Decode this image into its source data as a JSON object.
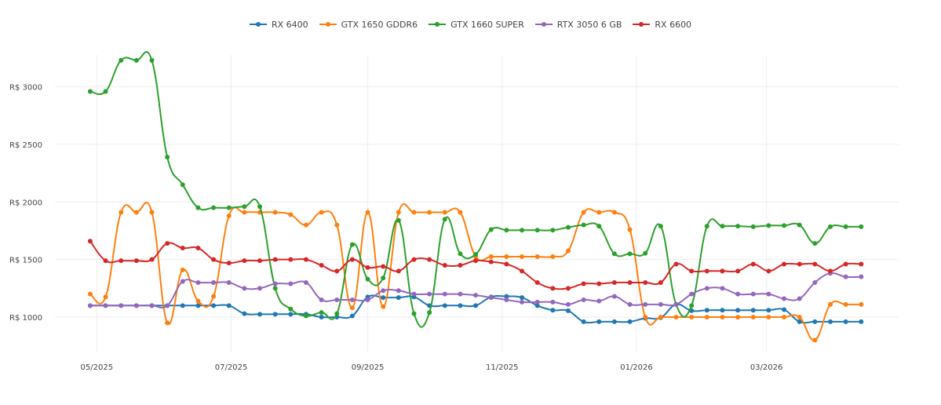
{
  "chart_data": {
    "type": "line",
    "title": "",
    "xlabel": "",
    "ylabel": "",
    "x_axis": {
      "type": "date",
      "range": [
        "2025-04-12",
        "2026-04-30"
      ],
      "ticks": [
        {
          "date": "2025-05-01",
          "label": "05/2025"
        },
        {
          "date": "2025-07-01",
          "label": "07/2025"
        },
        {
          "date": "2025-09-01",
          "label": "09/2025"
        },
        {
          "date": "2025-11-01",
          "label": "11/2025"
        },
        {
          "date": "2026-01-01",
          "label": "01/2026"
        },
        {
          "date": "2026-03-01",
          "label": "03/2026"
        }
      ]
    },
    "y_axis": {
      "range": [
        700,
        3400
      ],
      "ticks": [
        {
          "value": 1000,
          "label": "R$ 1000"
        },
        {
          "value": 1500,
          "label": "R$ 1500"
        },
        {
          "value": 2000,
          "label": "R$ 2000"
        },
        {
          "value": 2500,
          "label": "R$ 2500"
        },
        {
          "value": 3000,
          "label": "R$ 3000"
        }
      ]
    },
    "grid": true,
    "legend_position": "top-center",
    "dates": [
      "2025-04-28",
      "2025-05-05",
      "2025-05-12",
      "2025-05-19",
      "2025-05-26",
      "2025-06-02",
      "2025-06-09",
      "2025-06-16",
      "2025-06-23",
      "2025-06-30",
      "2025-07-07",
      "2025-07-14",
      "2025-07-21",
      "2025-07-28",
      "2025-08-04",
      "2025-08-11",
      "2025-08-18",
      "2025-08-25",
      "2025-09-01",
      "2025-09-08",
      "2025-09-15",
      "2025-09-22",
      "2025-09-29",
      "2025-10-06",
      "2025-10-13",
      "2025-10-20",
      "2025-10-27",
      "2025-11-03",
      "2025-11-10",
      "2025-11-17",
      "2025-11-24",
      "2025-12-01",
      "2025-12-08",
      "2025-12-15",
      "2025-12-22",
      "2025-12-29",
      "2026-01-05",
      "2026-01-12",
      "2026-01-19",
      "2026-01-26",
      "2026-02-02",
      "2026-02-09",
      "2026-02-16",
      "2026-02-23",
      "2026-03-02",
      "2026-03-09",
      "2026-03-16",
      "2026-03-23",
      "2026-03-30",
      "2026-04-06",
      "2026-04-13"
    ],
    "series": [
      {
        "name": "RX 6400",
        "color": "#1f77b4",
        "values": [
          1100,
          1100,
          1100,
          1100,
          1100,
          1100,
          1100,
          1100,
          1100,
          1100,
          1030,
          1025,
          1025,
          1025,
          1025,
          1000,
          1000,
          1010,
          1175,
          1170,
          1170,
          1175,
          1100,
          1100,
          1100,
          1100,
          1175,
          1180,
          1170,
          1100,
          1060,
          1055,
          960,
          960,
          960,
          960,
          990,
          995,
          1110,
          1055,
          1060,
          1060,
          1060,
          1060,
          1060,
          1065,
          960,
          960,
          960,
          960,
          960
        ]
      },
      {
        "name": "GTX 1650 GDDR6",
        "color": "#ff7f0e",
        "values": [
          1200,
          1175,
          1910,
          1910,
          1910,
          950,
          1410,
          1140,
          1180,
          1880,
          1910,
          1910,
          1910,
          1890,
          1800,
          1910,
          1800,
          1080,
          1910,
          1090,
          1910,
          1910,
          1910,
          1910,
          1910,
          1525,
          1525,
          1525,
          1525,
          1525,
          1525,
          1575,
          1910,
          1910,
          1910,
          1760,
          1000,
          1000,
          1000,
          1000,
          1000,
          1000,
          1000,
          1000,
          1000,
          1000,
          1000,
          800,
          1110,
          1110,
          1110
        ]
      },
      {
        "name": "GTX 1660 SUPER",
        "color": "#2ca02c",
        "values": [
          2960,
          2960,
          3230,
          3230,
          3230,
          2390,
          2150,
          1950,
          1950,
          1950,
          1960,
          1960,
          1250,
          1070,
          1010,
          1040,
          1030,
          1630,
          1330,
          1340,
          1840,
          1030,
          1040,
          1850,
          1550,
          1545,
          1760,
          1755,
          1755,
          1755,
          1755,
          1780,
          1800,
          1790,
          1550,
          1550,
          1555,
          1790,
          1110,
          1100,
          1790,
          1790,
          1790,
          1785,
          1795,
          1795,
          1800,
          1640,
          1785,
          1785,
          1785
        ]
      },
      {
        "name": "RTX 3050 6 GB",
        "color": "#9467bd",
        "values": [
          1100,
          1100,
          1100,
          1100,
          1100,
          1100,
          1310,
          1300,
          1300,
          1300,
          1250,
          1250,
          1290,
          1290,
          1300,
          1150,
          1150,
          1150,
          1150,
          1230,
          1230,
          1200,
          1200,
          1200,
          1200,
          1190,
          1170,
          1150,
          1130,
          1130,
          1130,
          1110,
          1150,
          1140,
          1180,
          1110,
          1110,
          1110,
          1110,
          1200,
          1250,
          1250,
          1200,
          1200,
          1200,
          1160,
          1160,
          1300,
          1380,
          1350,
          1350
        ]
      },
      {
        "name": "RX 6600",
        "color": "#d62728",
        "values": [
          1660,
          1490,
          1490,
          1490,
          1500,
          1640,
          1600,
          1600,
          1500,
          1470,
          1490,
          1490,
          1500,
          1500,
          1500,
          1450,
          1400,
          1500,
          1430,
          1440,
          1400,
          1500,
          1500,
          1450,
          1450,
          1490,
          1480,
          1460,
          1400,
          1300,
          1250,
          1250,
          1290,
          1290,
          1300,
          1300,
          1300,
          1300,
          1460,
          1400,
          1400,
          1400,
          1400,
          1460,
          1400,
          1460,
          1460,
          1460,
          1400,
          1460,
          1460
        ]
      }
    ]
  }
}
